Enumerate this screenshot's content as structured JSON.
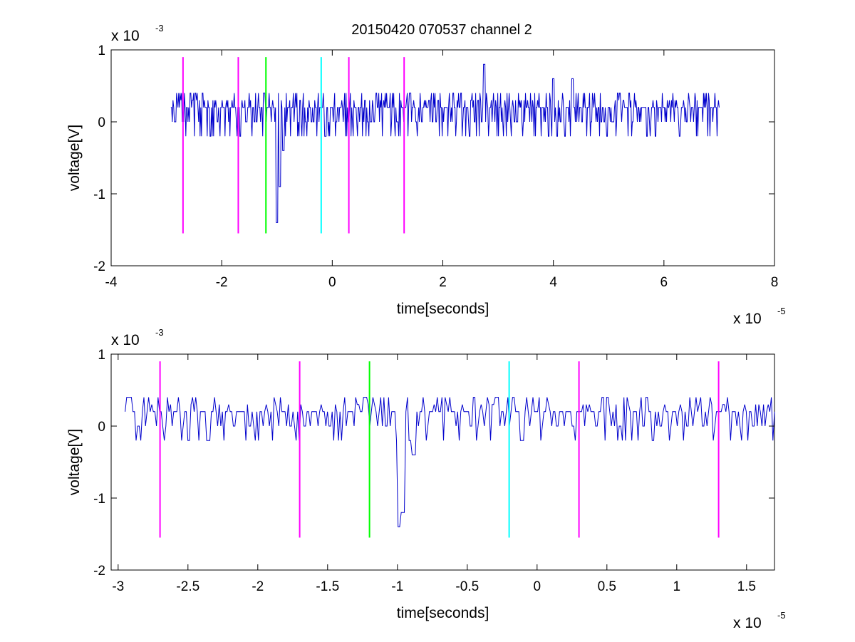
{
  "figure": {
    "title": "20150420 070537 channel 2"
  },
  "chart_data": [
    {
      "type": "line",
      "title": "20150420 070537 channel 2",
      "xlabel": "time[seconds]",
      "ylabel": "voltage[V]",
      "x_multiplier": "x 10",
      "x_exponent": "-5",
      "y_multiplier": "x 10",
      "y_exponent": "-3",
      "xlim": [
        -4e-05,
        8e-05
      ],
      "ylim": [
        -0.002,
        0.001
      ],
      "x_ticks": [
        -4e-05,
        -2e-05,
        0,
        2e-05,
        4e-05,
        6e-05,
        8e-05
      ],
      "x_tick_labels": [
        "-4",
        "-2",
        "0",
        "2",
        "4",
        "6",
        "8"
      ],
      "y_ticks": [
        -0.002,
        -0.001,
        0,
        0.001
      ],
      "y_tick_labels": [
        "-2",
        "-1",
        "0",
        "1"
      ],
      "grid": false,
      "series": [
        {
          "color": "#0000cc",
          "x_range": [
            -2.92e-05,
            7e-05
          ],
          "baseline": 0.0,
          "quantum": 0.0002,
          "spikes": [
            {
              "x": -1.23e-05,
              "y": 0.0004
            },
            {
              "x": -1e-05,
              "y": -0.0014
            },
            {
              "x": -9.5e-06,
              "y": -0.0009
            },
            {
              "x": -8.8e-06,
              "y": -0.0004
            },
            {
              "x": 2.75e-05,
              "y": 0.0008
            },
            {
              "x": 4e-05,
              "y": 0.0006
            },
            {
              "x": 4.35e-05,
              "y": 0.0006
            }
          ]
        }
      ],
      "vlines": [
        {
          "x": -2.7e-05,
          "color": "#ff00ff",
          "y_range": [
            -0.00155,
            0.0009
          ]
        },
        {
          "x": -1.7e-05,
          "color": "#ff00ff",
          "y_range": [
            -0.00155,
            0.0009
          ]
        },
        {
          "x": -1.2e-05,
          "color": "#00ff00",
          "y_range": [
            -0.00155,
            0.0009
          ]
        },
        {
          "x": -2e-06,
          "color": "#00ffff",
          "y_range": [
            -0.00155,
            0.0009
          ]
        },
        {
          "x": 3e-06,
          "color": "#ff00ff",
          "y_range": [
            -0.00155,
            0.0009
          ]
        },
        {
          "x": 1.3e-05,
          "color": "#ff00ff",
          "y_range": [
            -0.00155,
            0.0009
          ]
        }
      ]
    },
    {
      "type": "line",
      "title": "",
      "xlabel": "time[seconds]",
      "ylabel": "voltage[V]",
      "x_multiplier": "x 10",
      "x_exponent": "-5",
      "y_multiplier": "x 10",
      "y_exponent": "-3",
      "xlim": [
        -3.05e-05,
        1.7e-05
      ],
      "ylim": [
        -0.002,
        0.001
      ],
      "x_ticks": [
        -3e-05,
        -2.5e-05,
        -2e-05,
        -1.5e-05,
        -1e-05,
        -5e-06,
        0,
        5e-06,
        1e-05,
        1.5e-05
      ],
      "x_tick_labels": [
        "-3",
        "-2.5",
        "-2",
        "-1.5",
        "-1",
        "-0.5",
        "0",
        "0.5",
        "1",
        "1.5"
      ],
      "y_ticks": [
        -0.002,
        -0.001,
        0,
        0.001
      ],
      "y_tick_labels": [
        "-2",
        "-1",
        "0",
        "1"
      ],
      "grid": false,
      "series": [
        {
          "color": "#0000cc",
          "x_range": [
            -2.95e-05,
            1.7e-05
          ],
          "baseline": 0.0,
          "quantum": 0.0002,
          "spikes": [
            {
              "x": -2.93e-05,
              "y": 0.0004
            },
            {
              "x": -1.23e-05,
              "y": 0.0004
            },
            {
              "x": -9.8e-06,
              "y": -0.0014
            },
            {
              "x": -9.6e-06,
              "y": -0.0012
            },
            {
              "x": -9.1e-06,
              "y": -0.0002
            },
            {
              "x": -8.8e-06,
              "y": -0.0004
            }
          ]
        }
      ],
      "vlines": [
        {
          "x": -2.7e-05,
          "color": "#ff00ff",
          "y_range": [
            -0.00155,
            0.0009
          ]
        },
        {
          "x": -1.7e-05,
          "color": "#ff00ff",
          "y_range": [
            -0.00155,
            0.0009
          ]
        },
        {
          "x": -1.2e-05,
          "color": "#00ff00",
          "y_range": [
            -0.00155,
            0.0009
          ]
        },
        {
          "x": -2e-06,
          "color": "#00ffff",
          "y_range": [
            -0.00155,
            0.0009
          ]
        },
        {
          "x": 3e-06,
          "color": "#ff00ff",
          "y_range": [
            -0.00155,
            0.0009
          ]
        },
        {
          "x": 1.3e-05,
          "color": "#ff00ff",
          "y_range": [
            -0.00155,
            0.0009
          ]
        }
      ]
    }
  ]
}
